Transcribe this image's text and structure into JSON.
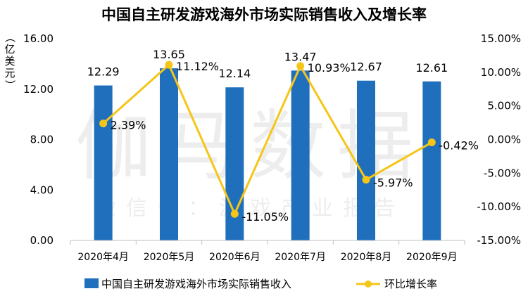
{
  "chart_data": {
    "type": "bar",
    "title": "中国自主研发游戏海外市场实际销售收入及增长率",
    "ylabel": "（亿美元）",
    "categories": [
      "2020年4月",
      "2020年5月",
      "2020年6月",
      "2020年7月",
      "2020年8月",
      "2020年9月"
    ],
    "series": [
      {
        "name": "中国自主研发游戏海外市场实际销售收入",
        "kind": "bar",
        "axis": "left",
        "values": [
          12.29,
          13.65,
          12.14,
          13.47,
          12.67,
          12.61
        ],
        "labels": [
          "12.29",
          "13.65",
          "12.14",
          "13.47",
          "12.67",
          "12.61"
        ],
        "color": "#1f6fbd"
      },
      {
        "name": "环比增长率",
        "kind": "line",
        "axis": "right",
        "values": [
          2.39,
          11.12,
          -11.05,
          10.93,
          -5.97,
          -0.42
        ],
        "labels": [
          "2.39%",
          "11.12%",
          "-11.05%",
          "10.93%",
          "-5.97%",
          "-0.42%"
        ],
        "color": "#f5c518"
      }
    ],
    "y_left": {
      "min": 0,
      "max": 16,
      "ticks": [
        0,
        4,
        8,
        12,
        16
      ],
      "tick_labels": [
        "0.00",
        "4.00",
        "8.00",
        "12.00",
        "16.00"
      ]
    },
    "y_right": {
      "min": -15,
      "max": 15,
      "ticks": [
        -15,
        -10,
        -5,
        0,
        5,
        10,
        15
      ],
      "tick_labels": [
        "-15.00%",
        "-10.00%",
        "-5.00%",
        "0.00%",
        "5.00%",
        "10.00%",
        "15.00%"
      ]
    },
    "legend_position": "bottom",
    "grid": false,
    "watermark": {
      "main": "伽马数据",
      "sub": "微信号：游戏产业报告"
    }
  }
}
